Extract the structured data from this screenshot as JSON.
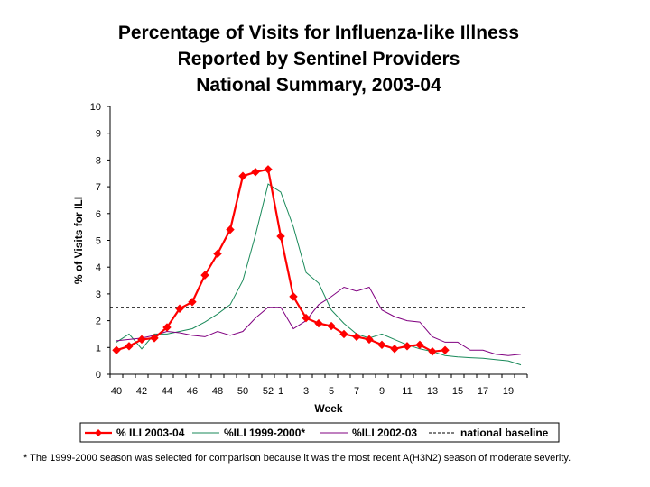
{
  "chart_data": {
    "type": "line",
    "title": [
      "Percentage of Visits for Influenza-like Illness",
      "Reported by Sentinel Providers",
      "National Summary, 2003-04"
    ],
    "xlabel": "Week",
    "ylabel": "% of Visits for ILI",
    "ylim": [
      0,
      10
    ],
    "yticks": [
      "0",
      "1",
      "2",
      "3",
      "4",
      "5",
      "6",
      "7",
      "8",
      "9",
      "10"
    ],
    "week_sequence": [
      40,
      41,
      42,
      43,
      44,
      45,
      46,
      47,
      48,
      49,
      50,
      51,
      52,
      1,
      2,
      3,
      4,
      5,
      6,
      7,
      8,
      9,
      10,
      11,
      12,
      13,
      14,
      15,
      16,
      17,
      18,
      19,
      20
    ],
    "xtick_labels": [
      "40",
      "42",
      "44",
      "46",
      "48",
      "50",
      "52",
      "1",
      "3",
      "5",
      "7",
      "9",
      "11",
      "13",
      "15",
      "17",
      "19"
    ],
    "baseline": {
      "name": "national baseline",
      "value": 2.5
    },
    "series": [
      {
        "name": "% ILI 2003-04",
        "color": "#ff0000",
        "values": [
          0.9,
          1.05,
          1.3,
          1.35,
          1.75,
          2.45,
          2.7,
          3.7,
          4.5,
          5.4,
          7.4,
          7.55,
          7.65,
          5.15,
          2.9,
          2.1,
          1.9,
          1.8,
          1.5,
          1.4,
          1.3,
          1.1,
          0.95,
          1.05,
          1.1,
          0.85,
          0.9
        ]
      },
      {
        "name": "%ILI 1999-2000*",
        "color": "#1a8a5a",
        "values": [
          1.2,
          1.5,
          0.95,
          1.5,
          1.5,
          1.6,
          1.7,
          1.95,
          2.25,
          2.6,
          3.5,
          5.2,
          7.1,
          6.8,
          5.5,
          3.8,
          3.4,
          2.4,
          1.9,
          1.5,
          1.35,
          1.5,
          1.3,
          1.1,
          0.95,
          0.85,
          0.7,
          0.65,
          0.62,
          0.6,
          0.55,
          0.5,
          0.35
        ]
      },
      {
        "name": "%ILI 2002-03",
        "color": "#800080",
        "values": [
          1.25,
          1.3,
          1.35,
          1.45,
          1.6,
          1.55,
          1.45,
          1.4,
          1.6,
          1.45,
          1.6,
          2.1,
          2.5,
          2.5,
          1.7,
          2.0,
          2.6,
          2.9,
          3.25,
          3.1,
          3.25,
          2.4,
          2.15,
          2.0,
          1.95,
          1.4,
          1.2,
          1.2,
          0.9,
          0.9,
          0.75,
          0.7,
          0.75
        ]
      }
    ],
    "footnote": "* The 1999-2000 season was selected for comparison because it was the most recent A(H3N2) season of moderate severity."
  }
}
